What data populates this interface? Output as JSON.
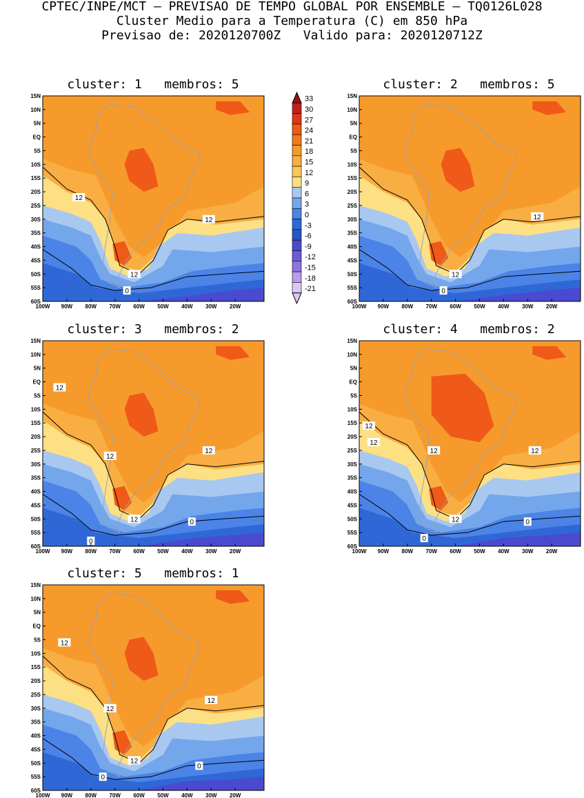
{
  "header": {
    "line1": "CPTEC/INPE/MCT – PREVISAO DE TEMPO GLOBAL POR ENSEMBLE – TQ0126L028",
    "line2": "Cluster Medio para a Temperatura (C) em 850 hPa",
    "line3": "Previsao de: 2020120700Z   Valido para: 2020120712Z"
  },
  "axes": {
    "lat_labels": [
      "15N",
      "10N",
      "5N",
      "EQ",
      "5S",
      "10S",
      "15S",
      "20S",
      "25S",
      "30S",
      "35S",
      "40S",
      "45S",
      "50S",
      "55S",
      "60S"
    ],
    "lon_labels": [
      "100W",
      "90W",
      "80W",
      "70W",
      "60W",
      "50W",
      "40W",
      "30W",
      "20W"
    ]
  },
  "colorbar": {
    "levels": [
      "33",
      "30",
      "27",
      "24",
      "21",
      "18",
      "15",
      "12",
      "9",
      "6",
      "3",
      "0",
      "-3",
      "-6",
      "-9",
      "-12",
      "-15",
      "-18",
      "-21"
    ],
    "colors": [
      "#a01010",
      "#c22020",
      "#dc3818",
      "#ef5a18",
      "#f27a1c",
      "#f79a2c",
      "#f8ae42",
      "#fbc656",
      "#fde084",
      "#a9c8f0",
      "#74a6ec",
      "#4b84e6",
      "#2f68d6",
      "#2a55c2",
      "#4a4ad0",
      "#6c5ad8",
      "#8f74e0",
      "#b69cea",
      "#d9c8f2"
    ]
  },
  "panels": [
    {
      "title": "cluster: 1   membros: 5",
      "labels": [
        {
          "text": "12",
          "lon": -85,
          "lat": -22
        },
        {
          "text": "12",
          "lon": -31,
          "lat": -30
        },
        {
          "text": "12",
          "lon": -62,
          "lat": -50
        },
        {
          "text": "0",
          "lon": -65,
          "lat": -56
        }
      ]
    },
    {
      "title": "cluster: 2   membros: 5",
      "labels": [
        {
          "text": "12",
          "lon": -26,
          "lat": -29
        },
        {
          "text": "12",
          "lon": -60,
          "lat": -50
        },
        {
          "text": "0",
          "lon": -65,
          "lat": -56
        }
      ]
    },
    {
      "title": "cluster: 3   membros: 2",
      "labels": [
        {
          "text": "12",
          "lon": -93,
          "lat": -2
        },
        {
          "text": "12",
          "lon": -72,
          "lat": -27
        },
        {
          "text": "12",
          "lon": -31,
          "lat": -25
        },
        {
          "text": "12",
          "lon": -62,
          "lat": -50
        },
        {
          "text": "0",
          "lon": -38,
          "lat": -51
        },
        {
          "text": "0",
          "lon": -80,
          "lat": -58
        }
      ]
    },
    {
      "title": "cluster: 4   membros: 2",
      "labels": [
        {
          "text": "12",
          "lon": -96,
          "lat": -16
        },
        {
          "text": "12",
          "lon": -94,
          "lat": -22
        },
        {
          "text": "12",
          "lon": -69,
          "lat": -25
        },
        {
          "text": "12",
          "lon": -27,
          "lat": -25
        },
        {
          "text": "12",
          "lon": -60,
          "lat": -50
        },
        {
          "text": "0",
          "lon": -30,
          "lat": -51
        },
        {
          "text": "0",
          "lon": -73,
          "lat": -57
        }
      ]
    },
    {
      "title": "cluster: 5   membros: 1",
      "labels": [
        {
          "text": "12",
          "lon": -91,
          "lat": -6
        },
        {
          "text": "12",
          "lon": -72,
          "lat": -30
        },
        {
          "text": "12",
          "lon": -30,
          "lat": -27
        },
        {
          "text": "12",
          "lon": -62,
          "lat": -49
        },
        {
          "text": "0",
          "lon": -35,
          "lat": -51
        },
        {
          "text": "0",
          "lon": -75,
          "lat": -55
        }
      ]
    }
  ]
}
